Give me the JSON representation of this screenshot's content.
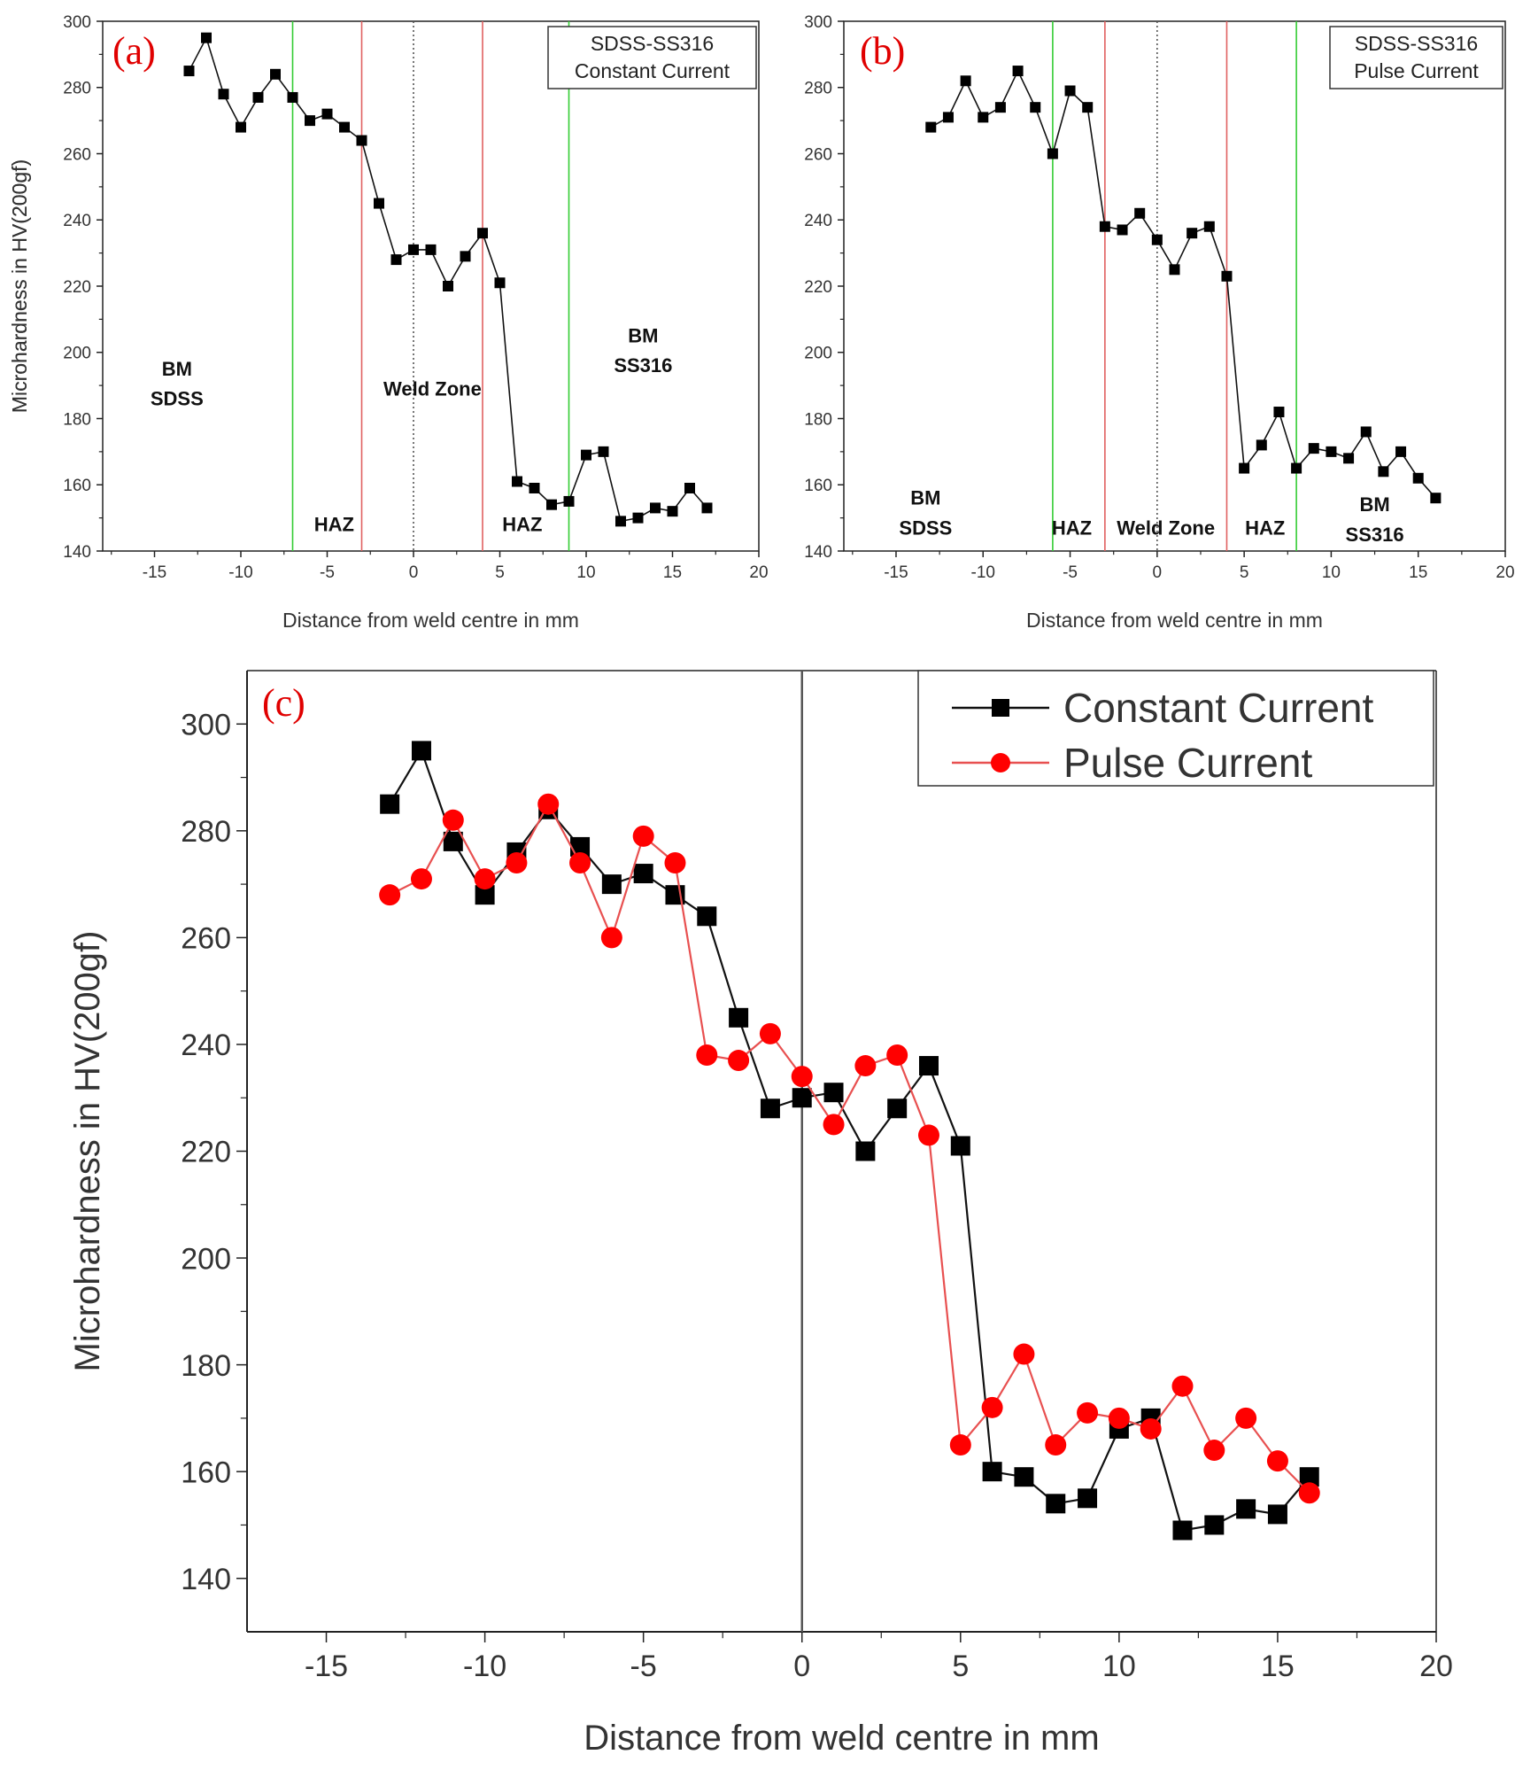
{
  "figure": {
    "panels": [
      {
        "label": "(a)",
        "legend_lines": [
          "SDSS-SS316",
          "Constant Current"
        ]
      },
      {
        "label": "(b)",
        "legend_lines": [
          "SDSS-SS316",
          "Pulse Current"
        ]
      },
      {
        "label": "(c)"
      }
    ]
  },
  "chart_data": [
    {
      "panel": "a",
      "type": "line",
      "title": "",
      "xlabel": "Distance from weld centre in mm",
      "ylabel": "Microhardness in HV(200gf)",
      "xlim": [
        -18,
        20
      ],
      "ylim": [
        140,
        300
      ],
      "xticks": [
        -15,
        -10,
        -5,
        0,
        5,
        10,
        15,
        20
      ],
      "yticks": [
        140,
        160,
        180,
        200,
        220,
        240,
        260,
        280,
        300
      ],
      "series": [
        {
          "name": "Constant Current",
          "color": "#000000",
          "marker": "square",
          "x": [
            -13,
            -12,
            -11,
            -10,
            -9,
            -8,
            -7,
            -6,
            -5,
            -4,
            -3,
            -2,
            -1,
            0,
            1,
            2,
            3,
            4,
            5,
            6,
            7,
            8,
            9,
            10,
            11,
            12,
            13,
            14,
            15,
            16,
            17
          ],
          "y": [
            285,
            295,
            278,
            268,
            277,
            284,
            277,
            270,
            272,
            268,
            264,
            245,
            228,
            231,
            231,
            220,
            229,
            236,
            221,
            161,
            159,
            154,
            155,
            169,
            170,
            149,
            150,
            153,
            152,
            159,
            153
          ]
        }
      ],
      "vlines": [
        {
          "x": -7,
          "color": "#33cc33",
          "style": "solid"
        },
        {
          "x": -3,
          "color": "#e06060",
          "style": "solid"
        },
        {
          "x": 0,
          "color": "#555555",
          "style": "dotted"
        },
        {
          "x": 4,
          "color": "#e06060",
          "style": "solid"
        },
        {
          "x": 9,
          "color": "#33cc33",
          "style": "solid"
        }
      ],
      "annotations": [
        {
          "text": "BM",
          "x": -13.7,
          "y": 193
        },
        {
          "text": "SDSS",
          "x": -13.7,
          "y": 184
        },
        {
          "text": "HAZ",
          "x": -4.6,
          "y": 146
        },
        {
          "text": "Weld Zone",
          "x": 1.1,
          "y": 187
        },
        {
          "text": "HAZ",
          "x": 6.3,
          "y": 146
        },
        {
          "text": "BM",
          "x": 13.3,
          "y": 203
        },
        {
          "text": "SS316",
          "x": 13.3,
          "y": 194
        }
      ],
      "legend": "top-right"
    },
    {
      "panel": "b",
      "type": "line",
      "title": "",
      "xlabel": "Distance from weld centre in mm",
      "ylabel": "Microhardness in HV(200gf)",
      "xlim": [
        -18,
        20
      ],
      "ylim": [
        140,
        300
      ],
      "xticks": [
        -15,
        -10,
        -5,
        0,
        5,
        10,
        15,
        20
      ],
      "yticks": [
        140,
        160,
        180,
        200,
        220,
        240,
        260,
        280,
        300
      ],
      "series": [
        {
          "name": "Pulse Current",
          "color": "#000000",
          "marker": "square",
          "x": [
            -13,
            -12,
            -11,
            -10,
            -9,
            -8,
            -7,
            -6,
            -5,
            -4,
            -3,
            -2,
            -1,
            0,
            1,
            2,
            3,
            4,
            5,
            6,
            7,
            8,
            9,
            10,
            11,
            12,
            13,
            14,
            15,
            16
          ],
          "y": [
            268,
            271,
            282,
            271,
            274,
            285,
            274,
            260,
            279,
            274,
            238,
            237,
            242,
            234,
            225,
            236,
            238,
            223,
            165,
            172,
            182,
            165,
            171,
            170,
            168,
            176,
            164,
            170,
            162,
            156
          ]
        }
      ],
      "vlines": [
        {
          "x": -6,
          "color": "#33cc33",
          "style": "solid"
        },
        {
          "x": -3,
          "color": "#e06060",
          "style": "solid"
        },
        {
          "x": 0,
          "color": "#555555",
          "style": "dotted"
        },
        {
          "x": 4,
          "color": "#e06060",
          "style": "solid"
        },
        {
          "x": 8,
          "color": "#33cc33",
          "style": "solid"
        }
      ],
      "annotations": [
        {
          "text": "BM",
          "x": -13.3,
          "y": 154
        },
        {
          "text": "SDSS",
          "x": -13.3,
          "y": 145
        },
        {
          "text": "HAZ",
          "x": -4.9,
          "y": 145
        },
        {
          "text": "Weld Zone",
          "x": 0.5,
          "y": 145
        },
        {
          "text": "HAZ",
          "x": 6.2,
          "y": 145
        },
        {
          "text": "BM",
          "x": 12.5,
          "y": 152
        },
        {
          "text": "SS316",
          "x": 12.5,
          "y": 143
        }
      ],
      "legend": "top-right"
    },
    {
      "panel": "c",
      "type": "line",
      "title": "",
      "xlabel": "Distance from weld centre in mm",
      "ylabel": "Microhardness in HV(200gf)",
      "xlim": [
        -17.5,
        20
      ],
      "ylim": [
        130,
        310
      ],
      "xticks": [
        -15,
        -10,
        -5,
        0,
        5,
        10,
        15,
        20
      ],
      "yticks": [
        140,
        160,
        180,
        200,
        220,
        240,
        260,
        280,
        300
      ],
      "series": [
        {
          "name": "Constant Current",
          "color": "#000000",
          "marker": "square",
          "x": [
            -13,
            -12,
            -11,
            -10,
            -9,
            -8,
            -7,
            -6,
            -5,
            -4,
            -3,
            -2,
            -1,
            0,
            1,
            2,
            3,
            4,
            5,
            6,
            7,
            8,
            9,
            10,
            11,
            12,
            13,
            14,
            15,
            16
          ],
          "y": [
            285,
            295,
            278,
            268,
            276,
            284,
            277,
            270,
            272,
            268,
            264,
            245,
            228,
            230,
            231,
            220,
            228,
            236,
            221,
            160,
            159,
            154,
            155,
            168,
            170,
            149,
            150,
            153,
            152,
            159
          ]
        },
        {
          "name": "Pulse Current",
          "color": "#ff0000",
          "marker": "circle",
          "x": [
            -13,
            -12,
            -11,
            -10,
            -9,
            -8,
            -7,
            -6,
            -5,
            -4,
            -3,
            -2,
            -1,
            0,
            1,
            2,
            3,
            4,
            5,
            6,
            7,
            8,
            9,
            10,
            11,
            12,
            13,
            14,
            15,
            16
          ],
          "y": [
            268,
            271,
            282,
            271,
            274,
            285,
            274,
            260,
            279,
            274,
            238,
            237,
            242,
            234,
            225,
            236,
            238,
            223,
            165,
            172,
            182,
            165,
            171,
            170,
            168,
            176,
            164,
            170,
            162,
            156
          ]
        }
      ],
      "vlines": [
        {
          "x": 0,
          "color": "#555555",
          "style": "solid"
        }
      ],
      "legend": "top-right"
    }
  ]
}
